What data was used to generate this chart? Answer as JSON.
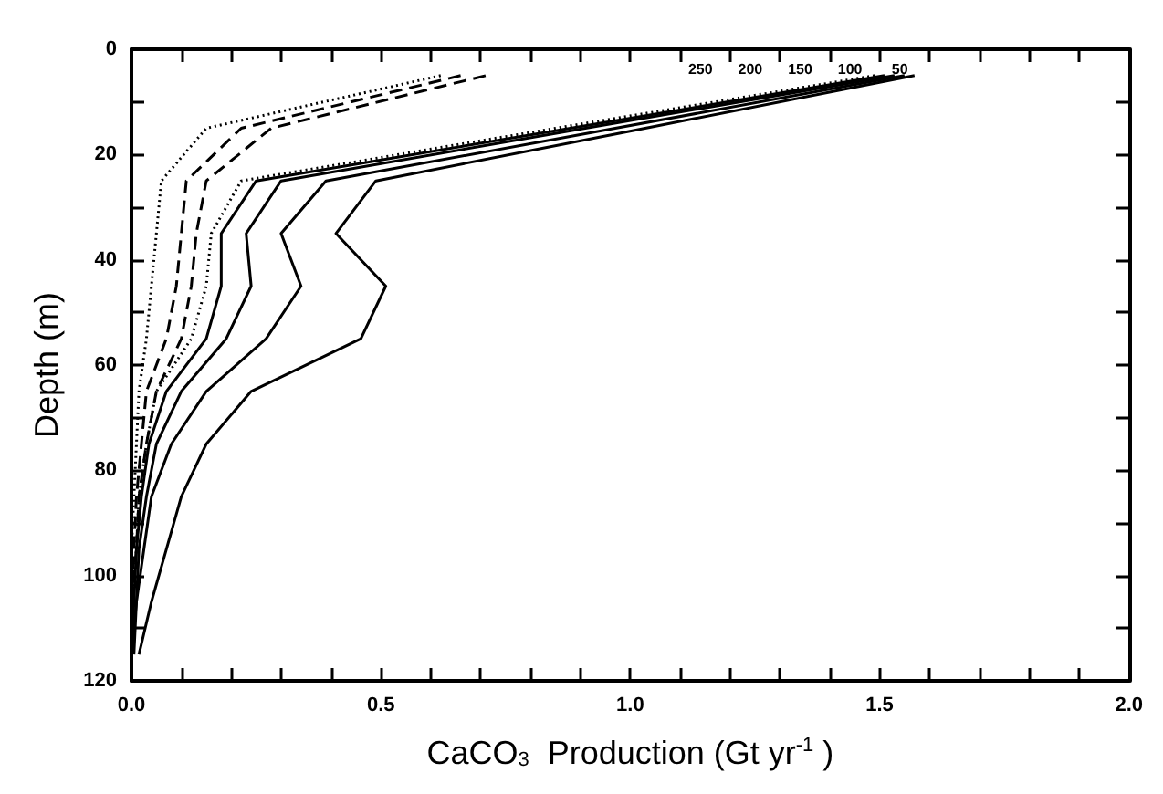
{
  "chart_data": {
    "type": "line",
    "xlabel": "CaCO$_{3}$  Production (Gt yr$^{-1}$ )",
    "ylabel": "Depth (m)",
    "xlim": [
      0,
      2.0
    ],
    "ylim": [
      120,
      0
    ],
    "xticks": [
      {
        "value": 0,
        "label": "0.0"
      },
      {
        "value": 0.1,
        "label": null
      },
      {
        "value": 0.2,
        "label": null
      },
      {
        "value": 0.3,
        "label": null
      },
      {
        "value": 0.4,
        "label": null
      },
      {
        "value": 0.5,
        "label": "0.5"
      },
      {
        "value": 0.6,
        "label": null
      },
      {
        "value": 0.7,
        "label": null
      },
      {
        "value": 0.8,
        "label": null
      },
      {
        "value": 0.9,
        "label": null
      },
      {
        "value": 1,
        "label": "1.0"
      },
      {
        "value": 1.1,
        "label": null
      },
      {
        "value": 1.2,
        "label": null
      },
      {
        "value": 1.3,
        "label": null
      },
      {
        "value": 1.4,
        "label": null
      },
      {
        "value": 1.5,
        "label": "1.5"
      },
      {
        "value": 1.6,
        "label": null
      },
      {
        "value": 1.7,
        "label": null
      },
      {
        "value": 1.8,
        "label": null
      },
      {
        "value": 1.9,
        "label": null
      },
      {
        "value": 2,
        "label": "2.0"
      }
    ],
    "yticks": [
      0,
      {
        "value": 10,
        "label": null
      },
      20,
      {
        "value": 30,
        "label": null
      },
      40,
      {
        "value": 50,
        "label": null
      },
      60,
      {
        "value": 70,
        "label": null
      },
      80,
      {
        "value": 90,
        "label": null
      },
      100,
      {
        "value": 110,
        "label": null
      },
      120
    ],
    "grid": false,
    "legend": false,
    "marker": "none",
    "series": [
      {
        "color": "#000000",
        "line_style": "solid",
        "x": [
          1.57,
          1.03,
          0.49,
          0.41,
          0.51,
          0.46,
          0.24,
          0.15,
          0.1,
          0.07,
          0.04,
          0.015
        ],
        "values": [
          5,
          15,
          25,
          35,
          45,
          55,
          65,
          75,
          85,
          95,
          105,
          115
        ]
      },
      {
        "color": "#000000",
        "line_style": "solid",
        "x": [
          1.55,
          0.97,
          0.39,
          0.3,
          0.34,
          0.27,
          0.15,
          0.08,
          0.04,
          0.025,
          0.01,
          0.005
        ],
        "values": [
          5,
          15,
          25,
          35,
          45,
          55,
          65,
          75,
          85,
          95,
          105,
          115
        ]
      },
      {
        "color": "#000000",
        "line_style": "solid",
        "x": [
          1.53,
          0.91,
          0.3,
          0.23,
          0.24,
          0.19,
          0.1,
          0.05,
          0.03,
          0.015,
          0.01,
          0
        ],
        "values": [
          5,
          15,
          25,
          35,
          45,
          55,
          65,
          75,
          85,
          95,
          105,
          115
        ]
      },
      {
        "color": "#000000",
        "line_style": "solid",
        "x": [
          1.51,
          0.88,
          0.25,
          0.18,
          0.18,
          0.15,
          0.07,
          0.035,
          0.02,
          0.01,
          0.005,
          0
        ],
        "values": [
          5,
          15,
          25,
          35,
          45,
          55,
          65,
          75,
          85,
          95,
          105,
          115
        ]
      },
      {
        "color": "#000000",
        "line_style": "dotted",
        "x": [
          1.49,
          0.85,
          0.22,
          0.16,
          0.15,
          0.12,
          0.05,
          0.03,
          0.015,
          0.01,
          0,
          0
        ],
        "values": [
          5,
          15,
          25,
          35,
          45,
          55,
          65,
          75,
          85,
          95,
          105,
          115
        ]
      },
      {
        "color": "#000000",
        "line_style": "dashed",
        "x": [
          0.71,
          0.28,
          0.15,
          0.13,
          0.12,
          0.1,
          0.05,
          0.03,
          0.015,
          0.01,
          0,
          0
        ],
        "values": [
          5,
          15,
          25,
          35,
          45,
          55,
          65,
          75,
          85,
          95,
          105,
          115
        ]
      },
      {
        "color": "#000000",
        "line_style": "dashed",
        "x": [
          0.66,
          0.22,
          0.11,
          0.1,
          0.09,
          0.07,
          0.03,
          0.02,
          0.01,
          0.005,
          0,
          0
        ],
        "values": [
          5,
          15,
          25,
          35,
          45,
          55,
          65,
          75,
          85,
          95,
          105,
          115
        ]
      },
      {
        "color": "#000000",
        "line_style": "dotted",
        "x": [
          0.62,
          0.15,
          0.06,
          0.05,
          0.04,
          0.03,
          0.015,
          0.01,
          0.005,
          0,
          0,
          0
        ],
        "values": [
          5,
          15,
          25,
          35,
          45,
          55,
          65,
          75,
          85,
          95,
          105,
          115
        ]
      }
    ],
    "annotations": [
      "250",
      "200",
      "150",
      "100",
      "50"
    ]
  }
}
